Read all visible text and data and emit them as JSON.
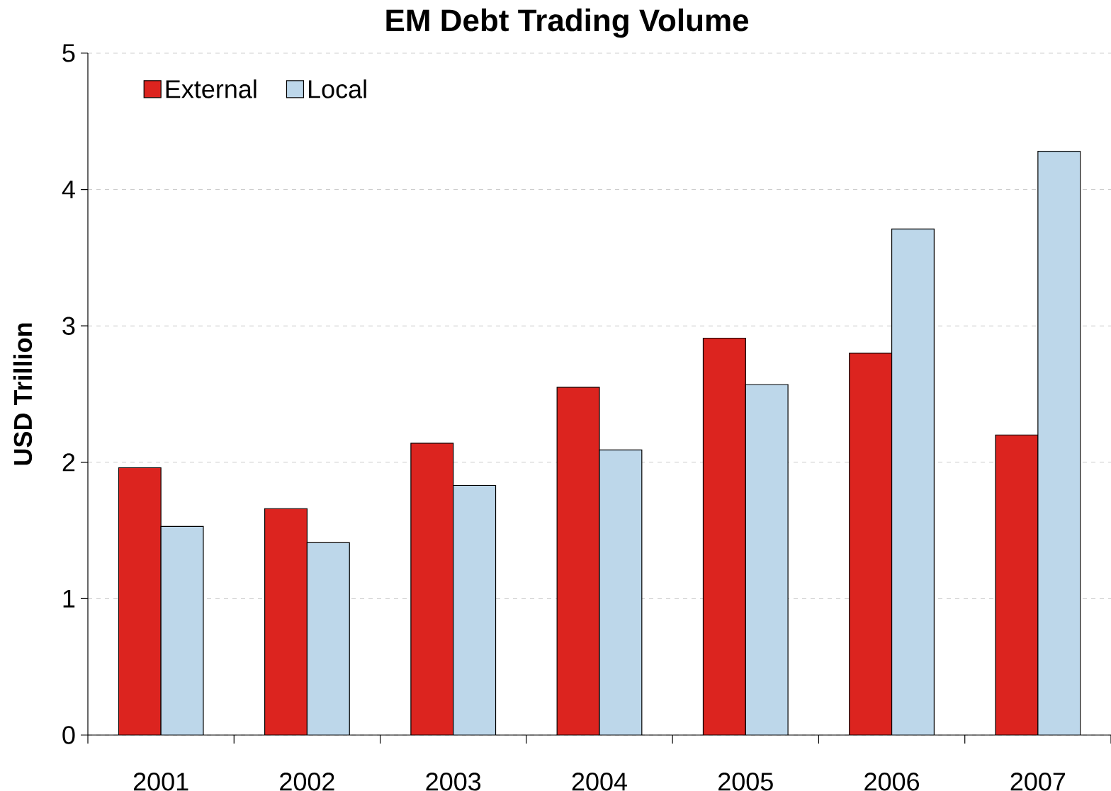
{
  "chart_data": {
    "type": "bar",
    "title": "EM Debt Trading Volume",
    "ylabel": "USD Trillion",
    "categories": [
      "2001",
      "2002",
      "2003",
      "2004",
      "2005",
      "2006",
      "2007"
    ],
    "series": [
      {
        "name": "External",
        "color": "#dc241f",
        "values": [
          1.96,
          1.66,
          2.14,
          2.55,
          2.91,
          2.8,
          2.2
        ]
      },
      {
        "name": "Local",
        "color": "#bdd7ea",
        "values": [
          1.53,
          1.41,
          1.83,
          2.09,
          2.57,
          3.71,
          4.28
        ]
      }
    ],
    "ylim": [
      0,
      5
    ],
    "yticks": [
      0,
      1,
      2,
      3,
      4,
      5
    ],
    "grid": "y",
    "legend": "top left"
  }
}
